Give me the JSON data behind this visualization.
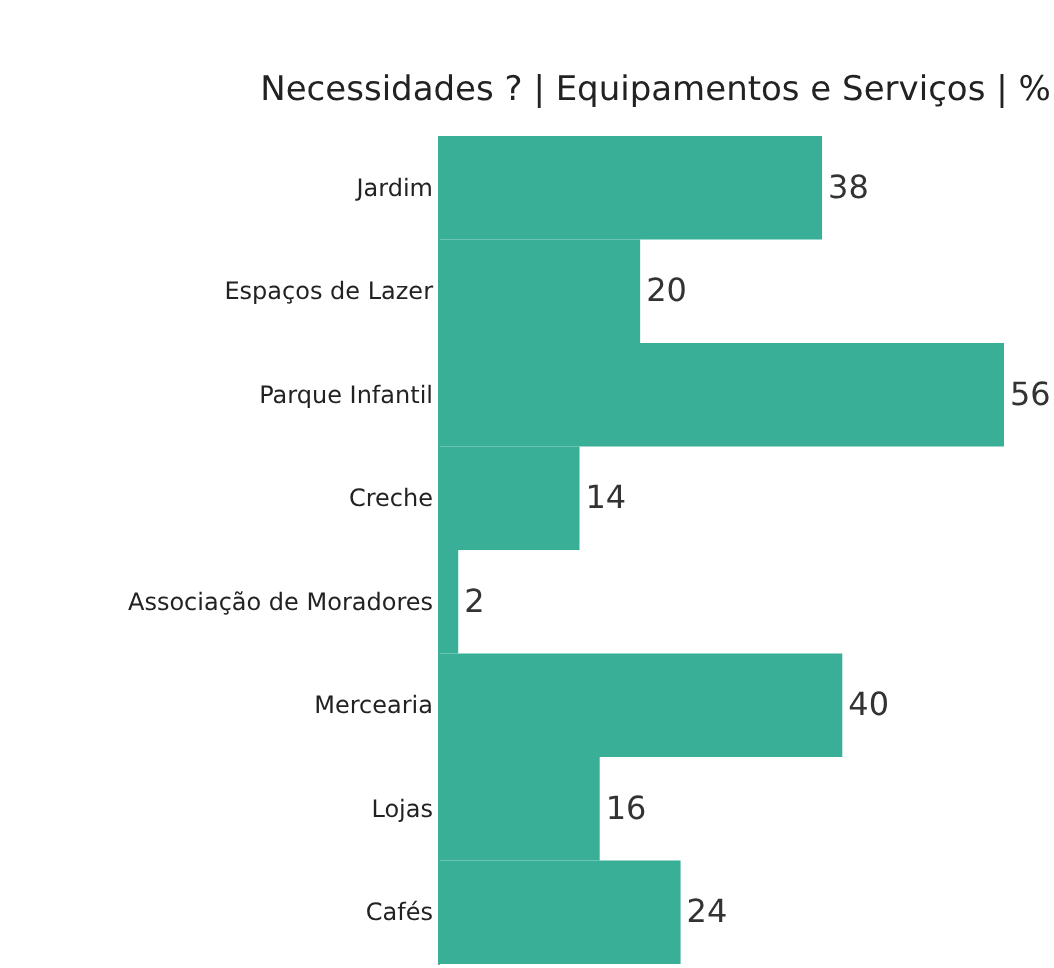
{
  "chart_data": {
    "type": "bar",
    "orientation": "horizontal",
    "title": "Necessidades ? | Equipamentos e Serviços | %",
    "categories": [
      "Jardim",
      "Espaços de Lazer",
      "Parque Infantil",
      "Creche",
      "Associação de Moradores",
      "Mercearia",
      "Lojas",
      "Cafés"
    ],
    "values": [
      38,
      20,
      56,
      14,
      2,
      40,
      16,
      24
    ],
    "color": "#3aaf98",
    "data_labels": true
  }
}
